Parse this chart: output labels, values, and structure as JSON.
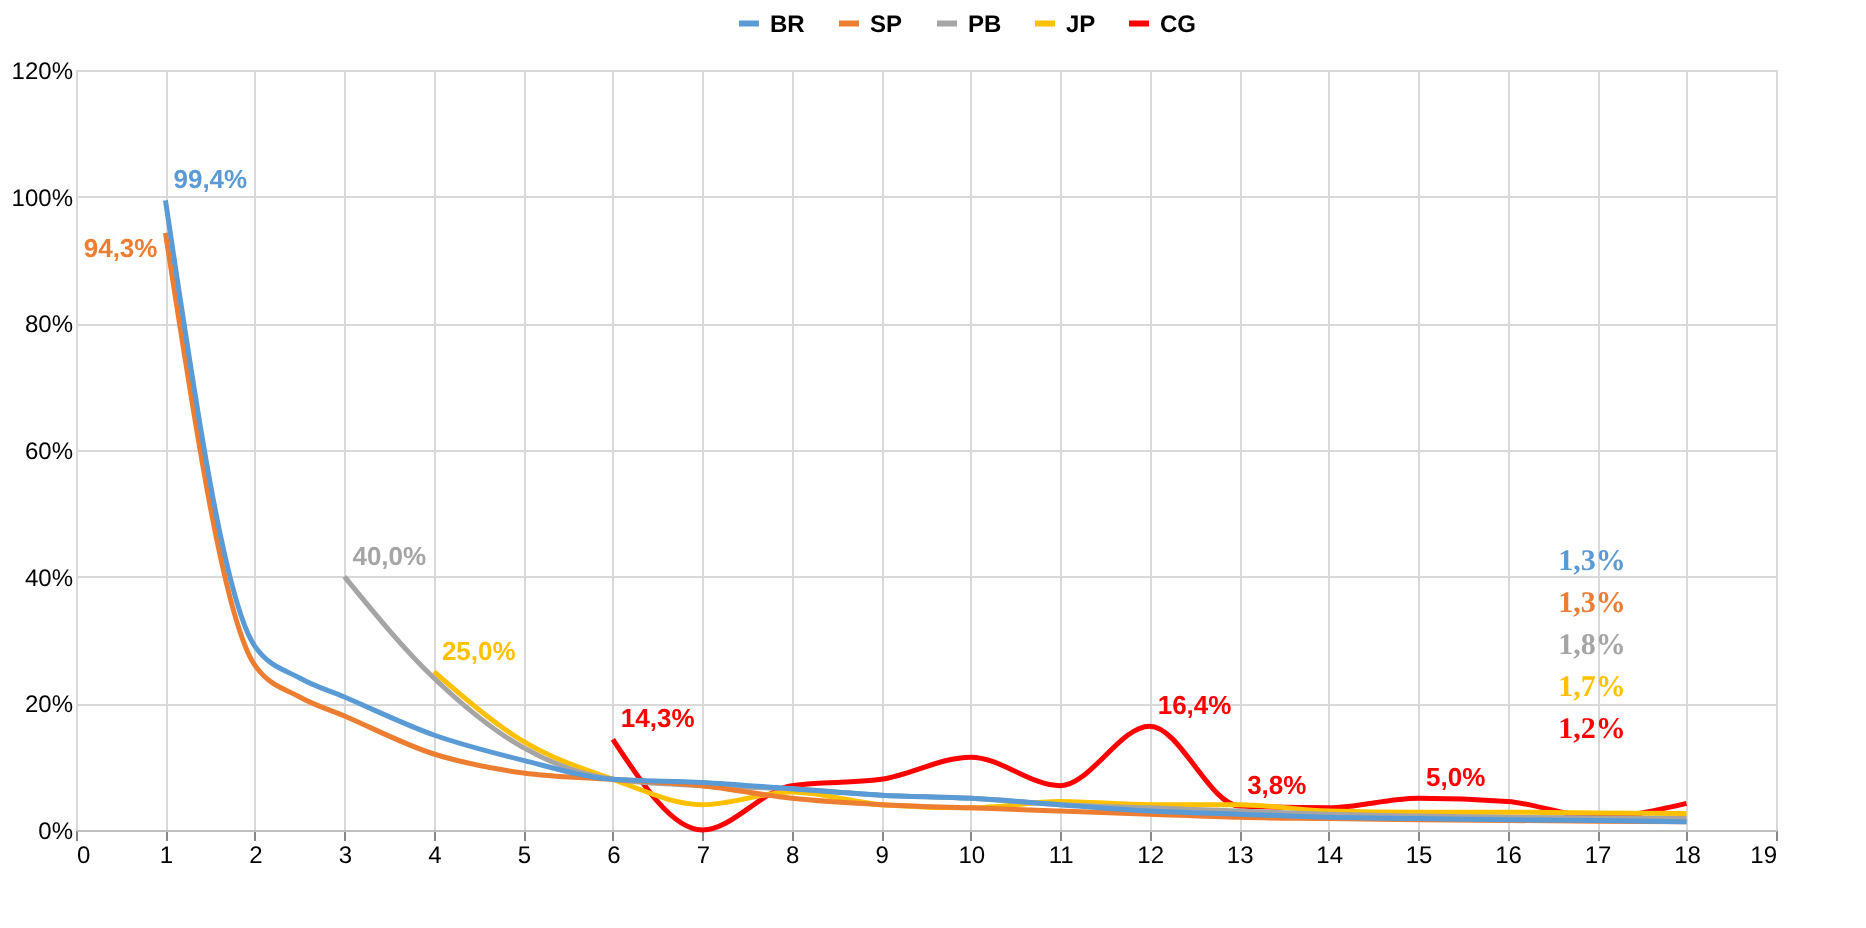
{
  "chart_data": {
    "type": "line",
    "xlim": [
      0,
      19
    ],
    "xticks": [
      0,
      1,
      2,
      3,
      4,
      5,
      6,
      7,
      8,
      9,
      10,
      11,
      12,
      13,
      14,
      15,
      16,
      17,
      18,
      19
    ],
    "ylim": [
      0,
      120
    ],
    "yticks": [
      {
        "value": 0,
        "label": "0%"
      },
      {
        "value": 20,
        "label": "20%"
      },
      {
        "value": 40,
        "label": "40%"
      },
      {
        "value": 60,
        "label": "60%"
      },
      {
        "value": 80,
        "label": "80%"
      },
      {
        "value": 100,
        "label": "100%"
      },
      {
        "value": 120,
        "label": "120%"
      }
    ],
    "grid": true,
    "legend": "top",
    "series": [
      {
        "name": "BR",
        "color": "#5b9bd5",
        "x": [
          1,
          2,
          2.5,
          3,
          4,
          5,
          6,
          7,
          8,
          9,
          10,
          11,
          12,
          13,
          14,
          15,
          16,
          17,
          18
        ],
        "values": [
          99.4,
          29,
          24,
          21,
          15,
          11,
          8,
          7.5,
          6.5,
          5.5,
          5,
          4,
          3,
          2.5,
          2,
          1.8,
          1.6,
          1.5,
          1.3
        ],
        "value_labels": [
          "99,4%",
          null,
          null,
          null,
          null,
          null,
          null,
          null,
          null,
          null,
          null,
          null,
          null,
          null,
          null,
          null,
          null,
          null,
          null
        ]
      },
      {
        "name": "SP",
        "color": "#ed7d31",
        "x": [
          1,
          2,
          2.5,
          3,
          4,
          5,
          6,
          7,
          8,
          9,
          10,
          11,
          12,
          13,
          14,
          15,
          16,
          17,
          18
        ],
        "values": [
          94.3,
          26,
          21,
          18,
          12,
          9,
          8,
          7,
          5,
          4,
          3.5,
          3,
          2.5,
          2,
          1.8,
          1.6,
          1.5,
          1.4,
          1.3
        ],
        "value_labels": [
          "94,3%",
          null,
          null,
          null,
          null,
          null,
          null,
          null,
          null,
          null,
          null,
          null,
          null,
          null,
          null,
          null,
          null,
          null,
          null
        ]
      },
      {
        "name": "PB",
        "color": "#a5a5a5",
        "x": [
          3,
          4,
          5,
          6,
          7,
          8,
          9,
          10,
          11,
          12,
          13,
          14,
          15,
          16,
          17,
          18
        ],
        "values": [
          40,
          24,
          13,
          8,
          7,
          6.5,
          5.5,
          5,
          4,
          3.5,
          3,
          2.5,
          2.2,
          2,
          1.9,
          1.8
        ],
        "value_labels": [
          "40,0%",
          null,
          null,
          null,
          null,
          null,
          null,
          null,
          null,
          null,
          null,
          null,
          null,
          null,
          null,
          null
        ]
      },
      {
        "name": "JP",
        "color": "#ffc000",
        "x": [
          4,
          5,
          6,
          7,
          8,
          9,
          10,
          11,
          12,
          13,
          14,
          15,
          16,
          17,
          18
        ],
        "values": [
          25,
          14,
          8,
          4,
          6,
          4,
          3.5,
          4.5,
          4,
          4,
          3,
          2.8,
          2.8,
          2.7,
          2.6
        ],
        "value_labels": [
          "25,0%",
          null,
          null,
          null,
          null,
          null,
          null,
          null,
          null,
          null,
          null,
          null,
          null,
          null,
          null
        ]
      },
      {
        "name": "CG",
        "color": "#ff0000",
        "x": [
          6,
          7,
          8,
          9,
          10,
          11,
          12,
          13,
          14,
          15,
          16,
          17,
          18
        ],
        "values": [
          14.3,
          0,
          7,
          8,
          11.5,
          7,
          16.4,
          3.8,
          3.5,
          5,
          4.5,
          2,
          4.2
        ],
        "value_labels": [
          "14,3%",
          null,
          null,
          null,
          null,
          null,
          "16,4%",
          "3,8%",
          null,
          "5,0%",
          null,
          null,
          null
        ]
      }
    ],
    "annotations": [
      "1,3%",
      "1,3%",
      "1,8%",
      "1,7%",
      "1,2%"
    ]
  }
}
